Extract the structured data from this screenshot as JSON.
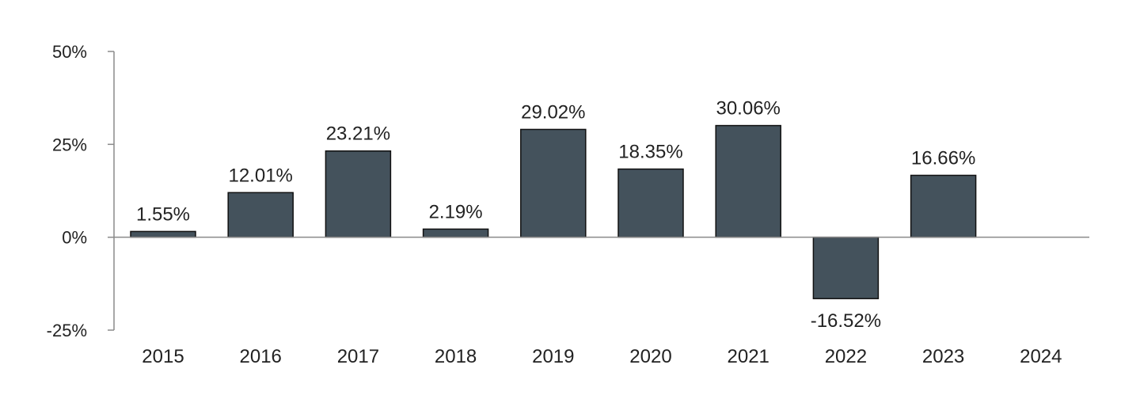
{
  "chart_data": {
    "type": "bar",
    "categories": [
      "2015",
      "2016",
      "2017",
      "2018",
      "2019",
      "2020",
      "2021",
      "2022",
      "2023",
      "2024"
    ],
    "values": [
      1.55,
      12.01,
      23.21,
      2.19,
      29.02,
      18.35,
      30.06,
      -16.52,
      16.66,
      null
    ],
    "value_labels": [
      "1.55%",
      "12.01%",
      "23.21%",
      "2.19%",
      "29.02%",
      "18.35%",
      "30.06%",
      "-16.52%",
      "16.66%",
      ""
    ],
    "y_ticks": [
      50,
      25,
      0,
      -25
    ],
    "y_tick_labels": [
      "50%",
      "25%",
      "0%",
      "-25%"
    ],
    "ylim": [
      -25,
      50
    ],
    "grid": false,
    "legend": "none",
    "title": "",
    "xlabel": "",
    "ylabel": "",
    "colors": {
      "bar_fill": "#44525c",
      "bar_stroke": "#111111",
      "axis": "#8a8a8a",
      "text": "#222222"
    }
  }
}
